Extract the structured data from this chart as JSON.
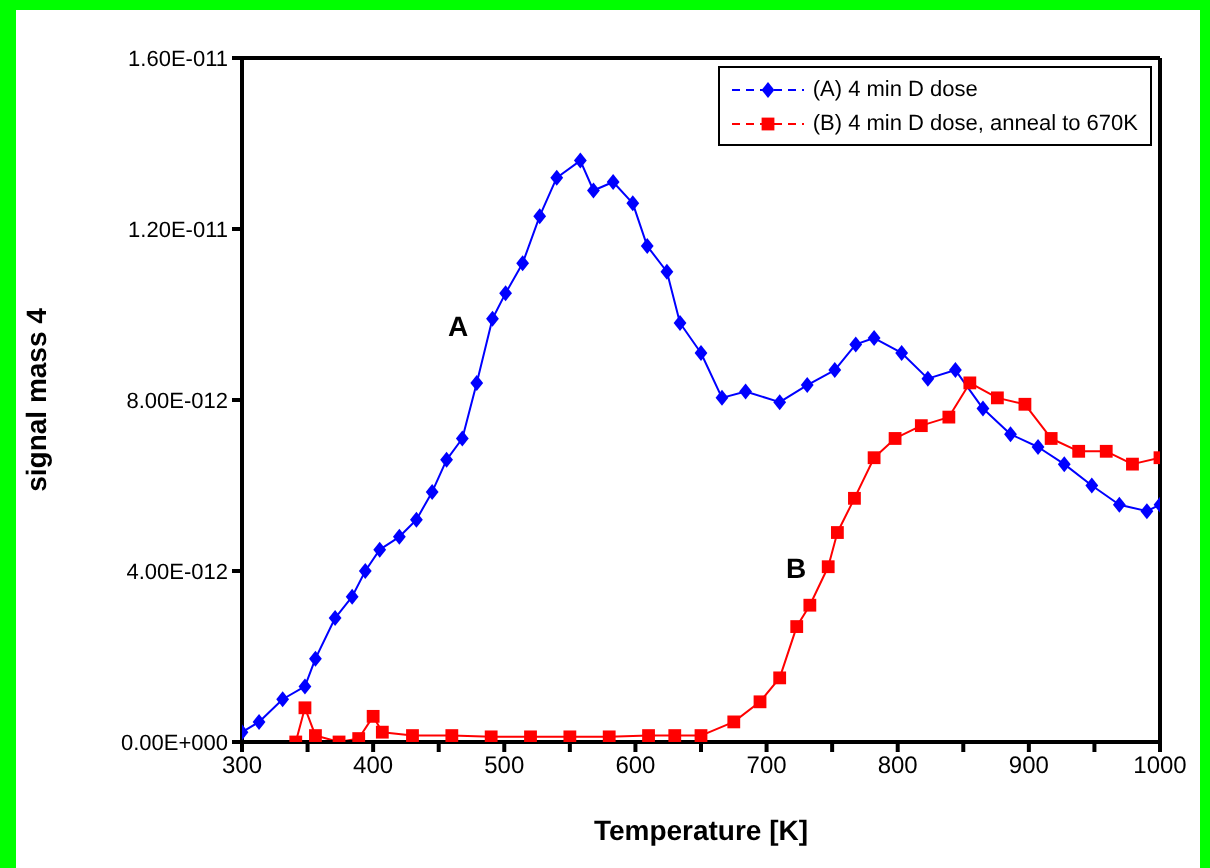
{
  "chart_data": {
    "type": "line",
    "xlabel": "Temperature [K]",
    "ylabel": "signal mass 4",
    "xlim": [
      300,
      1000
    ],
    "xticks": [
      300,
      {
        "value": 350,
        "label": null
      },
      400,
      {
        "value": 450,
        "label": null
      },
      500,
      {
        "value": 550,
        "label": null
      },
      600,
      {
        "value": 650,
        "label": null
      },
      700,
      {
        "value": 750,
        "label": null
      },
      800,
      {
        "value": 850,
        "label": null
      },
      900,
      {
        "value": 950,
        "label": null
      },
      1000
    ],
    "ylim": [
      0,
      1.6e-11
    ],
    "yticks": [
      {
        "value": 0,
        "label": "0.00E+000"
      },
      {
        "value": 4e-12,
        "label": "4.00E-012"
      },
      {
        "value": 8e-12,
        "label": "8.00E-012"
      },
      {
        "value": 1.2e-11,
        "label": "1.20E-011"
      },
      {
        "value": 1.6e-11,
        "label": "1.60E-011"
      }
    ],
    "legend": "top right",
    "line_style": "solid",
    "annotations": [
      "A",
      "B"
    ],
    "series": [
      {
        "name": "(A) 4 min D dose",
        "color": "#0000ff",
        "marker": "diamond",
        "x": [
          300,
          313,
          331,
          348,
          356,
          371,
          384,
          394,
          405,
          420,
          433,
          445,
          456,
          468,
          479,
          491,
          501,
          514,
          527,
          540,
          558,
          568,
          583,
          598,
          609,
          624,
          634,
          650,
          666,
          684,
          710,
          731,
          752,
          768,
          782,
          803,
          823,
          844,
          865,
          886,
          907,
          927,
          948,
          969,
          990,
          1000
        ],
        "values": [
          2.3e-13,
          4.7e-13,
          1e-12,
          1.3e-12,
          1.95e-12,
          2.9e-12,
          3.4e-12,
          4e-12,
          4.5e-12,
          4.8e-12,
          5.2e-12,
          5.85e-12,
          6.6e-12,
          7.1e-12,
          8.4e-12,
          9.9e-12,
          1.05e-11,
          1.12e-11,
          1.23e-11,
          1.32e-11,
          1.36e-11,
          1.29e-11,
          1.31e-11,
          1.26e-11,
          1.16e-11,
          1.1e-11,
          9.8e-12,
          9.1e-12,
          8.05e-12,
          8.2e-12,
          7.95e-12,
          8.35e-12,
          8.7e-12,
          9.3e-12,
          9.45e-12,
          9.1e-12,
          8.5e-12,
          8.7e-12,
          7.8e-12,
          7.2e-12,
          6.9e-12,
          6.5e-12,
          6e-12,
          5.55e-12,
          5.4e-12,
          5.55e-12
        ]
      },
      {
        "name": "(B) 4 min D dose, anneal to 670K",
        "color": "#ff0000",
        "marker": "square",
        "x": [
          341,
          348,
          356,
          374,
          389,
          400,
          407,
          430,
          460,
          490,
          520,
          550,
          580,
          610,
          630,
          650,
          675,
          695,
          710,
          723,
          733,
          747,
          754,
          767,
          782,
          798,
          818,
          839,
          855,
          876,
          897,
          917,
          938,
          959,
          979,
          1000
        ],
        "values": [
          0,
          8e-13,
          1.5e-13,
          0,
          8e-14,
          6e-13,
          2.3e-13,
          1.5e-13,
          1.5e-13,
          1.2e-13,
          1.2e-13,
          1.2e-13,
          1.2e-13,
          1.5e-13,
          1.5e-13,
          1.5e-13,
          4.7e-13,
          9.4e-13,
          1.5e-12,
          2.7e-12,
          3.2e-12,
          4.1e-12,
          4.9e-12,
          5.7e-12,
          6.65e-12,
          7.1e-12,
          7.4e-12,
          7.6e-12,
          8.4e-12,
          8.05e-12,
          7.9e-12,
          7.1e-12,
          6.8e-12,
          6.8e-12,
          6.5e-12,
          6.65e-12
        ]
      }
    ]
  }
}
